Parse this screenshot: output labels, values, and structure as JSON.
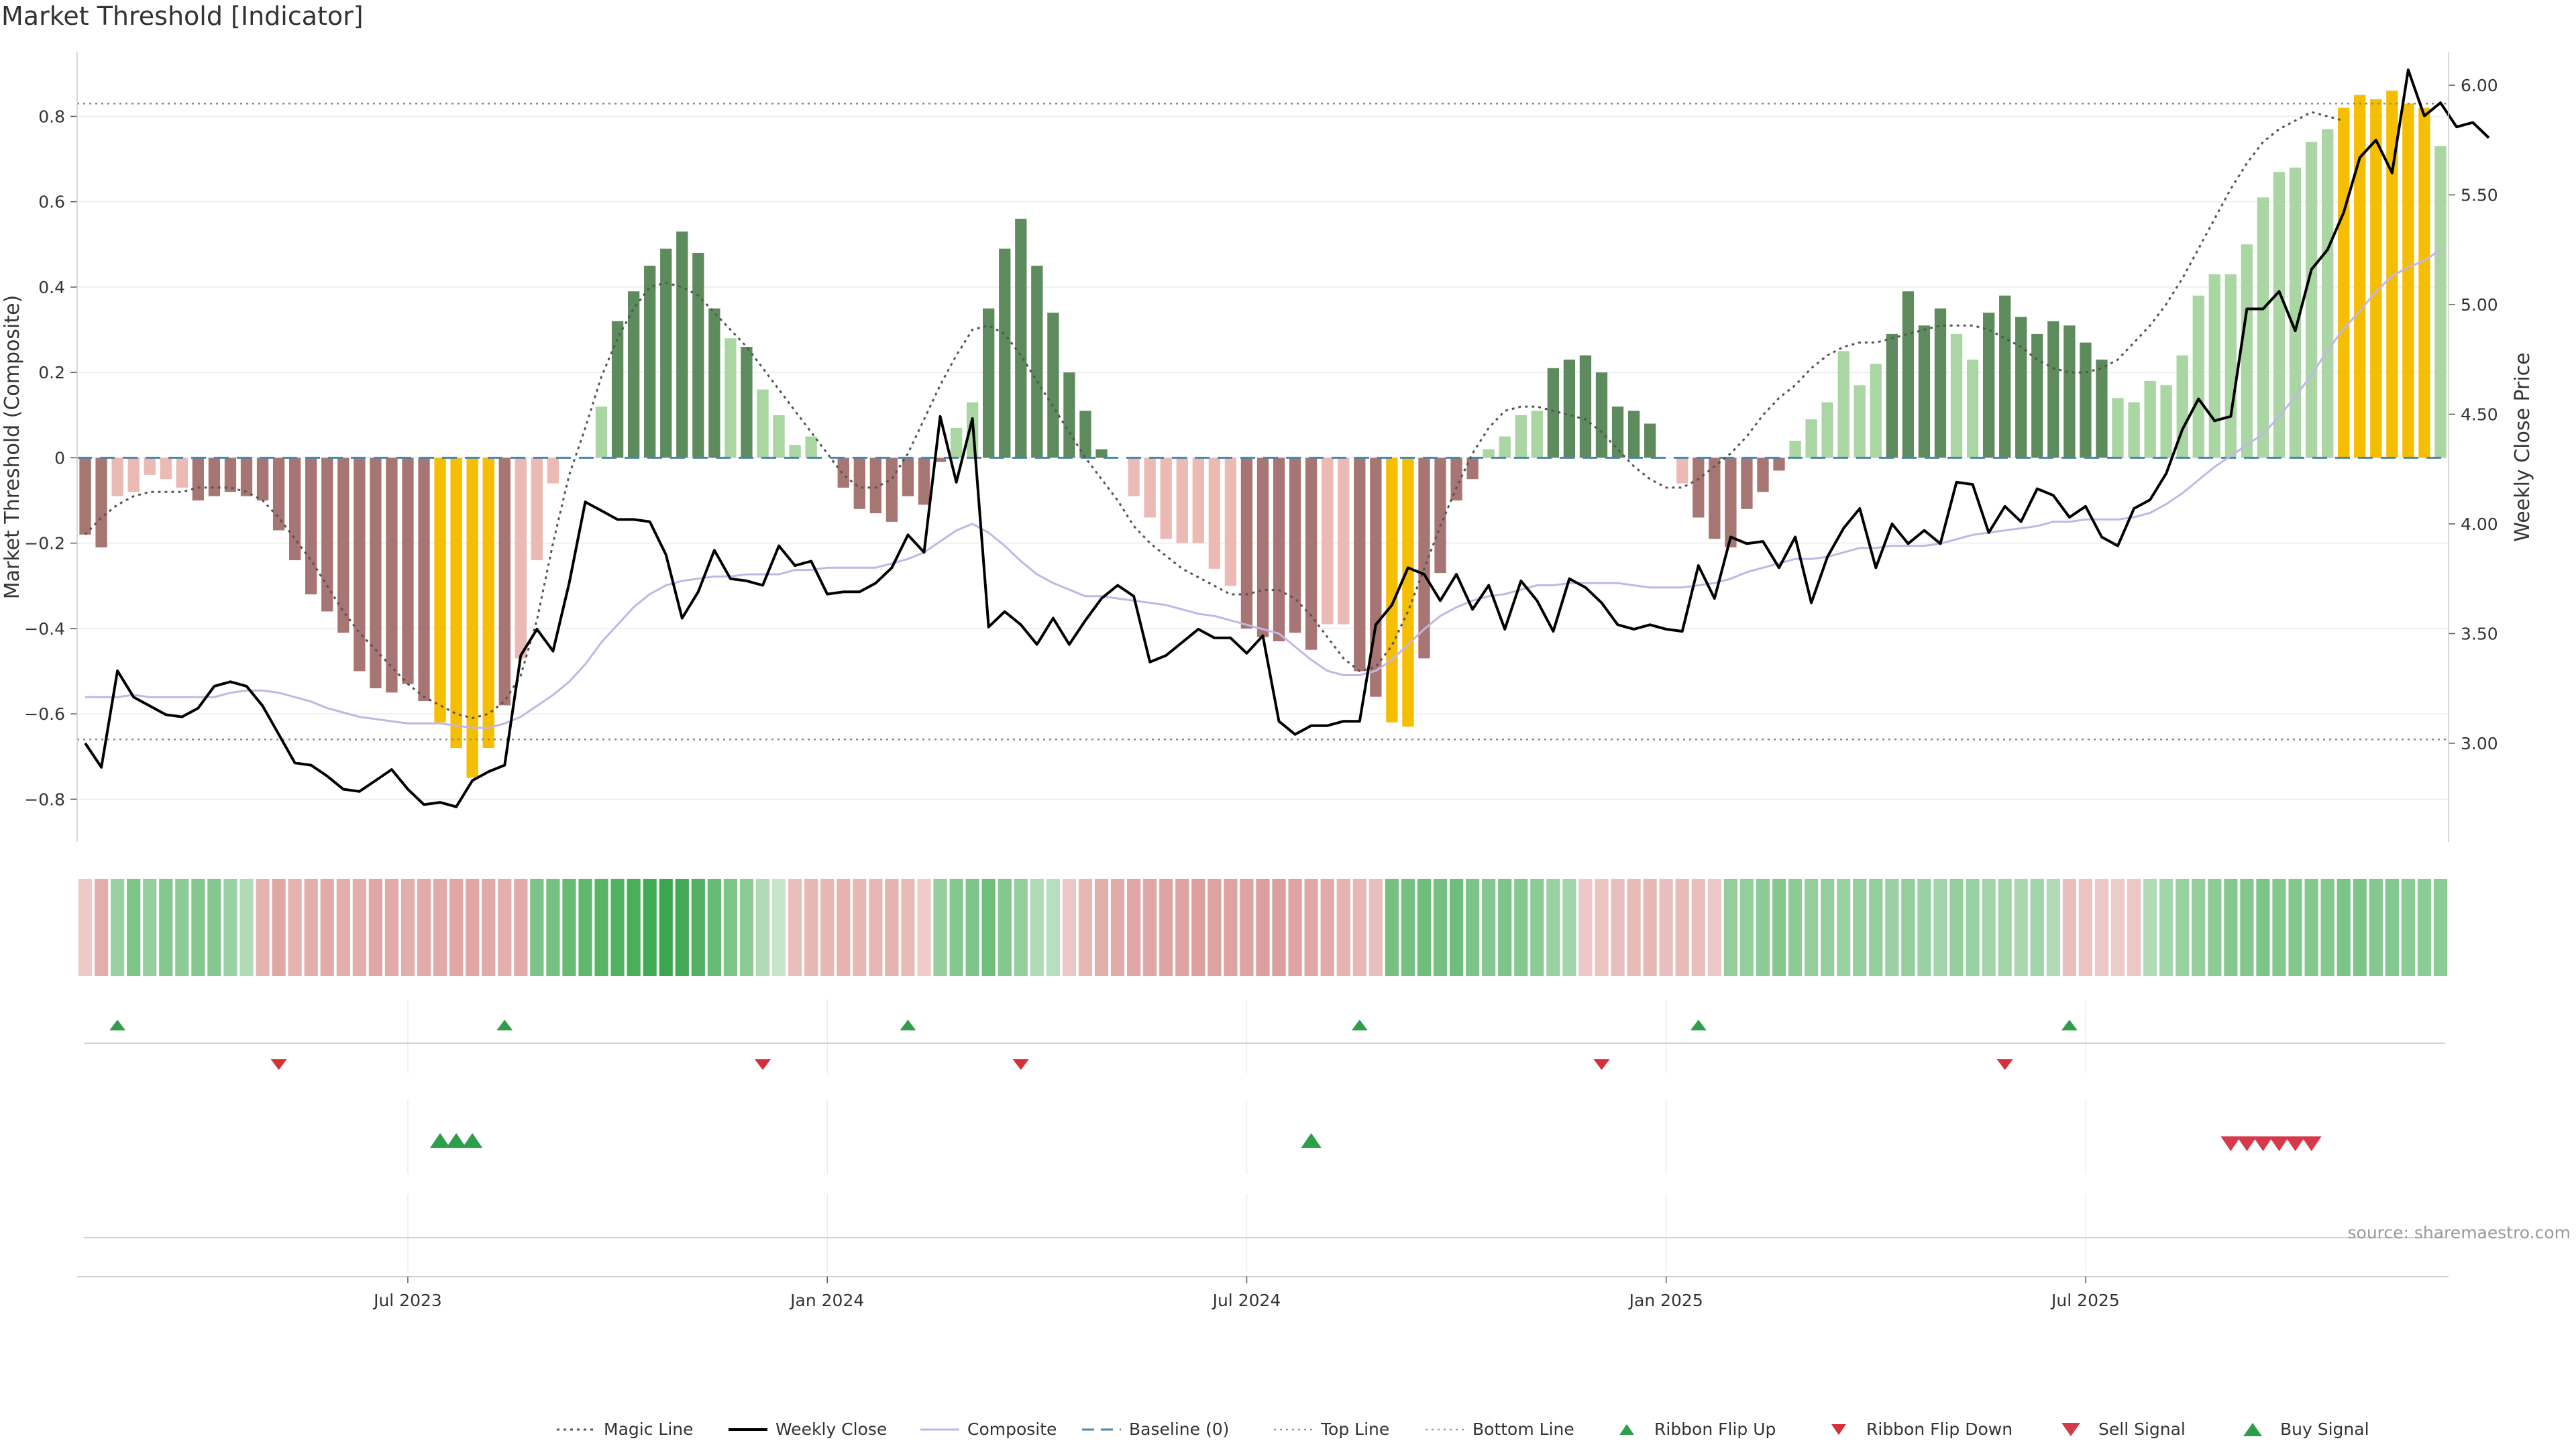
{
  "title": "Market Threshold [Indicator]",
  "source_text": "source: sharemaestro.com",
  "chart_data": {
    "type": "bar",
    "xlabel": "",
    "ylabel": "Market Threshold (Composite)",
    "ylabel_right": "Weekly Close Price",
    "ylim": [
      -0.9,
      0.95
    ],
    "ylim_right": [
      2.55,
      6.15
    ],
    "yticks": [
      0.8,
      0.6,
      0.4,
      0.2,
      0,
      -0.2,
      -0.4,
      -0.6,
      -0.8
    ],
    "ytick_labels": [
      "0.8",
      "0.6",
      "0.4",
      "0.2",
      "0",
      "−0.2",
      "−0.4",
      "−0.6",
      "−0.8"
    ],
    "yticks_right": [
      6.0,
      5.5,
      5.0,
      4.5,
      4.0,
      3.5,
      3.0
    ],
    "ytick_labels_right": [
      "6.00",
      "5.50",
      "5.00",
      "4.50",
      "4.00",
      "3.50",
      "3.00"
    ],
    "x_tick_labels": [
      {
        "label": "Jul 2023",
        "week": 20
      },
      {
        "label": "Jan 2024",
        "week": 46
      },
      {
        "label": "Jul 2024",
        "week": 72
      },
      {
        "label": "Jan 2025",
        "week": 98
      },
      {
        "label": "Jul 2025",
        "week": 124
      }
    ],
    "top_line": 0.83,
    "bottom_line": -0.66,
    "grid": true,
    "legend_position": "bottom",
    "colors": {
      "strong_pos": "#5e8b5e",
      "weak_pos": "#a9d6a3",
      "strong_neg": "#a87672",
      "weak_neg": "#ecbab5",
      "extreme": "#f5be00",
      "magic": "#555555",
      "close": "#000000",
      "composite": "#c2b6e6",
      "baseline": "#4f86a8",
      "flip_up": "#2e9e4a",
      "flip_down": "#d62f3a",
      "sell": "#d63a4a",
      "buy": "#2e9e4a"
    },
    "series": [
      {
        "name": "Composite bars",
        "values": [
          -0.18,
          -0.21,
          -0.09,
          -0.08,
          -0.04,
          -0.05,
          -0.07,
          -0.1,
          -0.09,
          -0.08,
          -0.09,
          -0.1,
          -0.17,
          -0.24,
          -0.32,
          -0.36,
          -0.41,
          -0.5,
          -0.54,
          -0.55,
          -0.53,
          -0.57,
          -0.62,
          -0.68,
          -0.75,
          -0.68,
          -0.58,
          -0.47,
          -0.24,
          -0.06,
          0.0,
          0.0,
          0.12,
          0.32,
          0.39,
          0.45,
          0.49,
          0.53,
          0.48,
          0.35,
          0.28,
          0.26,
          0.16,
          0.1,
          0.03,
          0.05,
          0.0,
          -0.07,
          -0.12,
          -0.13,
          -0.15,
          -0.09,
          -0.11,
          -0.01,
          0.07,
          0.13,
          0.35,
          0.49,
          0.56,
          0.45,
          0.34,
          0.2,
          0.11,
          0.02,
          0.0,
          -0.09,
          -0.14,
          -0.19,
          -0.2,
          -0.2,
          -0.26,
          -0.3,
          -0.4,
          -0.42,
          -0.43,
          -0.41,
          -0.45,
          -0.39,
          -0.39,
          -0.5,
          -0.56,
          -0.62,
          -0.63,
          -0.47,
          -0.27,
          -0.1,
          -0.05,
          0.02,
          0.05,
          0.1,
          0.11,
          0.21,
          0.23,
          0.24,
          0.2,
          0.12,
          0.11,
          0.08,
          0.0,
          -0.06,
          -0.14,
          -0.19,
          -0.21,
          -0.12,
          -0.08,
          -0.03,
          0.04,
          0.09,
          0.13,
          0.25,
          0.17,
          0.22,
          0.29,
          0.39,
          0.31,
          0.35,
          0.29,
          0.23,
          0.34,
          0.38,
          0.33,
          0.29,
          0.32,
          0.31,
          0.27,
          0.23,
          0.14,
          0.13,
          0.18,
          0.17,
          0.24,
          0.38,
          0.43,
          0.43,
          0.5,
          0.61,
          0.67,
          0.68,
          0.74,
          0.77,
          0.82,
          0.85,
          0.84,
          0.86,
          0.83,
          0.82,
          0.73
        ]
      },
      {
        "name": "Magic Line",
        "values": [
          -0.18,
          -0.14,
          -0.11,
          -0.09,
          -0.08,
          -0.08,
          -0.08,
          -0.07,
          -0.07,
          -0.07,
          -0.08,
          -0.1,
          -0.14,
          -0.19,
          -0.24,
          -0.3,
          -0.36,
          -0.41,
          -0.45,
          -0.49,
          -0.53,
          -0.56,
          -0.58,
          -0.6,
          -0.61,
          -0.6,
          -0.57,
          -0.51,
          -0.38,
          -0.2,
          -0.04,
          0.07,
          0.19,
          0.28,
          0.35,
          0.4,
          0.41,
          0.4,
          0.38,
          0.34,
          0.3,
          0.26,
          0.21,
          0.16,
          0.11,
          0.06,
          0.01,
          -0.04,
          -0.07,
          -0.07,
          -0.05,
          0.01,
          0.09,
          0.17,
          0.24,
          0.3,
          0.31,
          0.29,
          0.24,
          0.18,
          0.12,
          0.06,
          0.0,
          -0.05,
          -0.1,
          -0.16,
          -0.2,
          -0.23,
          -0.26,
          -0.28,
          -0.3,
          -0.32,
          -0.32,
          -0.31,
          -0.31,
          -0.33,
          -0.37,
          -0.42,
          -0.47,
          -0.5,
          -0.49,
          -0.44,
          -0.36,
          -0.26,
          -0.16,
          -0.07,
          0.01,
          0.07,
          0.11,
          0.12,
          0.12,
          0.11,
          0.1,
          0.09,
          0.06,
          0.02,
          -0.02,
          -0.05,
          -0.07,
          -0.07,
          -0.05,
          -0.02,
          0.01,
          0.05,
          0.1,
          0.14,
          0.17,
          0.21,
          0.24,
          0.26,
          0.27,
          0.27,
          0.28,
          0.29,
          0.3,
          0.31,
          0.31,
          0.31,
          0.3,
          0.28,
          0.26,
          0.23,
          0.21,
          0.2,
          0.2,
          0.21,
          0.23,
          0.27,
          0.31,
          0.36,
          0.42,
          0.49,
          0.56,
          0.63,
          0.69,
          0.74,
          0.77,
          0.79,
          0.81,
          0.8,
          0.79
        ]
      },
      {
        "name": "Weekly Close",
        "values": [
          3.0,
          2.89,
          3.33,
          3.21,
          3.17,
          3.13,
          3.12,
          3.16,
          3.26,
          3.28,
          3.26,
          3.17,
          3.04,
          2.91,
          2.9,
          2.85,
          2.79,
          2.78,
          2.83,
          2.88,
          2.79,
          2.72,
          2.73,
          2.71,
          2.83,
          2.87,
          2.9,
          3.4,
          3.52,
          3.42,
          3.73,
          4.1,
          4.06,
          4.02,
          4.02,
          4.01,
          3.86,
          3.57,
          3.69,
          3.88,
          3.75,
          3.74,
          3.72,
          3.9,
          3.81,
          3.83,
          3.68,
          3.69,
          3.69,
          3.73,
          3.8,
          3.95,
          3.87,
          4.49,
          4.19,
          4.48,
          3.53,
          3.6,
          3.54,
          3.45,
          3.57,
          3.45,
          3.56,
          3.66,
          3.72,
          3.67,
          3.37,
          3.4,
          3.46,
          3.52,
          3.48,
          3.48,
          3.41,
          3.49,
          3.1,
          3.04,
          3.08,
          3.08,
          3.1,
          3.1,
          3.54,
          3.63,
          3.8,
          3.77,
          3.65,
          3.77,
          3.61,
          3.72,
          3.52,
          3.74,
          3.65,
          3.51,
          3.75,
          3.71,
          3.64,
          3.54,
          3.52,
          3.54,
          3.52,
          3.51,
          3.81,
          3.66,
          3.94,
          3.91,
          3.92,
          3.8,
          3.94,
          3.64,
          3.85,
          3.98,
          4.07,
          3.8,
          4.0,
          3.91,
          3.97,
          3.91,
          4.19,
          4.18,
          3.96,
          4.08,
          4.01,
          4.16,
          4.13,
          4.03,
          4.08,
          3.94,
          3.9,
          4.07,
          4.11,
          4.23,
          4.43,
          4.57,
          4.47,
          4.49,
          4.98,
          4.98,
          5.06,
          4.88,
          5.16,
          5.25,
          5.42,
          5.67,
          5.75,
          5.6,
          6.07,
          5.86,
          5.92,
          5.81,
          5.83,
          5.76
        ]
      },
      {
        "name": "Composite",
        "values": [
          3.21,
          3.21,
          3.21,
          3.22,
          3.21,
          3.21,
          3.21,
          3.21,
          3.21,
          3.23,
          3.24,
          3.24,
          3.23,
          3.21,
          3.19,
          3.16,
          3.14,
          3.12,
          3.11,
          3.1,
          3.09,
          3.09,
          3.09,
          3.08,
          3.07,
          3.07,
          3.09,
          3.12,
          3.17,
          3.22,
          3.28,
          3.36,
          3.46,
          3.54,
          3.62,
          3.68,
          3.72,
          3.74,
          3.75,
          3.76,
          3.76,
          3.77,
          3.77,
          3.77,
          3.79,
          3.79,
          3.8,
          3.8,
          3.8,
          3.8,
          3.82,
          3.84,
          3.87,
          3.92,
          3.97,
          4.0,
          3.96,
          3.9,
          3.83,
          3.77,
          3.73,
          3.7,
          3.67,
          3.67,
          3.66,
          3.65,
          3.64,
          3.63,
          3.61,
          3.59,
          3.58,
          3.56,
          3.54,
          3.52,
          3.5,
          3.44,
          3.38,
          3.33,
          3.31,
          3.31,
          3.33,
          3.38,
          3.45,
          3.52,
          3.58,
          3.62,
          3.65,
          3.67,
          3.68,
          3.7,
          3.72,
          3.72,
          3.73,
          3.73,
          3.73,
          3.73,
          3.72,
          3.71,
          3.71,
          3.71,
          3.72,
          3.73,
          3.75,
          3.78,
          3.8,
          3.82,
          3.84,
          3.84,
          3.85,
          3.87,
          3.89,
          3.89,
          3.9,
          3.9,
          3.9,
          3.91,
          3.93,
          3.95,
          3.96,
          3.97,
          3.98,
          3.99,
          4.01,
          4.01,
          4.02,
          4.02,
          4.02,
          4.03,
          4.05,
          4.09,
          4.14,
          4.2,
          4.26,
          4.31,
          4.36,
          4.41,
          4.49,
          4.58,
          4.68,
          4.79,
          4.89,
          4.97,
          5.06,
          5.13,
          5.17,
          5.2,
          5.25
        ]
      },
      {
        "name": "Ribbon",
        "values": [
          -0.18,
          -0.5,
          0.35,
          0.55,
          0.4,
          0.5,
          0.45,
          0.5,
          0.5,
          0.35,
          0.2,
          -0.45,
          -0.6,
          -0.45,
          -0.5,
          -0.55,
          -0.5,
          -0.5,
          -0.6,
          -0.55,
          -0.5,
          -0.55,
          -0.55,
          -0.6,
          -0.6,
          -0.55,
          -0.5,
          -0.55,
          0.55,
          0.6,
          0.7,
          0.75,
          0.8,
          0.85,
          0.9,
          0.95,
          1.0,
          0.95,
          0.85,
          0.7,
          0.55,
          0.45,
          0.2,
          0.05,
          -0.3,
          -0.4,
          -0.4,
          -0.45,
          -0.4,
          -0.4,
          -0.45,
          -0.35,
          -0.15,
          0.4,
          0.5,
          0.55,
          0.65,
          0.5,
          0.4,
          0.2,
          0.15,
          -0.2,
          -0.4,
          -0.5,
          -0.55,
          -0.6,
          -0.6,
          -0.65,
          -0.65,
          -0.7,
          -0.65,
          -0.65,
          -0.65,
          -0.7,
          -0.7,
          -0.65,
          -0.6,
          -0.55,
          -0.45,
          -0.4,
          -0.3,
          0.6,
          0.6,
          0.65,
          0.6,
          0.65,
          0.55,
          0.5,
          0.55,
          0.5,
          0.45,
          0.35,
          0.3,
          -0.2,
          -0.25,
          -0.3,
          -0.35,
          -0.4,
          -0.3,
          -0.35,
          -0.3,
          -0.2,
          0.4,
          0.4,
          0.45,
          0.5,
          0.45,
          0.4,
          0.4,
          0.35,
          0.4,
          0.4,
          0.35,
          0.4,
          0.35,
          0.3,
          0.4,
          0.35,
          0.3,
          0.3,
          0.25,
          0.3,
          0.2,
          -0.3,
          -0.25,
          -0.2,
          -0.15,
          -0.2,
          0.2,
          0.3,
          0.35,
          0.4,
          0.45,
          0.5,
          0.5,
          0.55,
          0.5,
          0.5,
          0.5,
          0.5,
          0.55,
          0.55,
          0.5,
          0.5,
          0.45,
          0.45,
          0.45
        ]
      },
      {
        "name": "Ribbon Flip Up",
        "values": [
          2,
          26,
          51,
          79,
          100,
          123
        ]
      },
      {
        "name": "Ribbon Flip Down",
        "values": [
          12,
          42,
          58,
          94,
          119
        ]
      },
      {
        "name": "Buy Signal",
        "values": [
          22,
          23,
          24,
          76
        ]
      },
      {
        "name": "Sell Signal",
        "values": [
          133,
          134,
          135,
          136,
          137,
          138
        ]
      }
    ]
  },
  "legend": [
    {
      "label": "Magic Line",
      "kind": "dotted-dark"
    },
    {
      "label": "Weekly Close",
      "kind": "solid-black"
    },
    {
      "label": "Composite",
      "kind": "solid-lavender"
    },
    {
      "label": "Baseline (0)",
      "kind": "dashed-blue"
    },
    {
      "label": "Top Line",
      "kind": "dotted-grey"
    },
    {
      "label": "Bottom Line",
      "kind": "dotted-grey"
    },
    {
      "label": "Ribbon Flip Up",
      "kind": "triangle-up-small"
    },
    {
      "label": "Ribbon Flip Down",
      "kind": "triangle-down-small"
    },
    {
      "label": "Sell Signal",
      "kind": "triangle-down-large"
    },
    {
      "label": "Buy Signal",
      "kind": "triangle-up-large"
    }
  ]
}
